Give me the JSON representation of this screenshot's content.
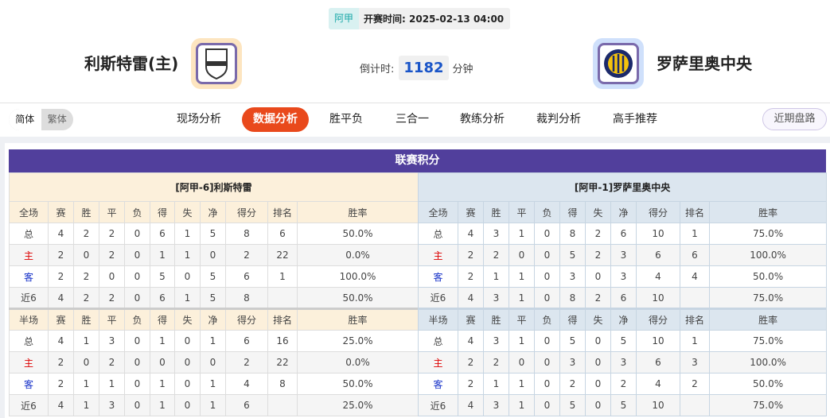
{
  "match": {
    "league": "阿甲",
    "kickoff_label": "开赛时间:",
    "kickoff": "2025-02-13 04:00",
    "home": "利斯特雷(主)",
    "away": "罗萨里奥中央",
    "countdown_label": "倒计时:",
    "countdown": "1182",
    "countdown_unit": "分钟",
    "home_logo_text": "D.RIESTRA",
    "home_logo_color": "#fde5c0",
    "away_logo_color": "#cfe0fb"
  },
  "nav": {
    "lang": [
      "简体",
      "繁体"
    ],
    "tabs": [
      "现场分析",
      "数据分析",
      "胜平负",
      "三合一",
      "教练分析",
      "裁判分析",
      "高手推荐"
    ],
    "active_tab": "数据分析",
    "recent": "近期盘路"
  },
  "standings": {
    "title": "联赛积分",
    "columns": [
      "赛",
      "胜",
      "平",
      "负",
      "得",
      "失",
      "净",
      "得分",
      "排名",
      "胜率"
    ],
    "full_label": "全场",
    "half_label": "半场",
    "teams": [
      {
        "name": "[阿甲-6]利斯特雷",
        "full": [
          [
            "总",
            "4",
            "2",
            "2",
            "0",
            "6",
            "1",
            "5",
            "8",
            "6",
            "50.0%"
          ],
          [
            "主",
            "2",
            "0",
            "2",
            "0",
            "1",
            "1",
            "0",
            "2",
            "22",
            "0.0%"
          ],
          [
            "客",
            "2",
            "2",
            "0",
            "0",
            "5",
            "0",
            "5",
            "6",
            "1",
            "100.0%"
          ],
          [
            "近6",
            "4",
            "2",
            "2",
            "0",
            "6",
            "1",
            "5",
            "8",
            "",
            "50.0%"
          ]
        ],
        "half": [
          [
            "总",
            "4",
            "1",
            "3",
            "0",
            "1",
            "0",
            "1",
            "6",
            "16",
            "25.0%"
          ],
          [
            "主",
            "2",
            "0",
            "2",
            "0",
            "0",
            "0",
            "0",
            "2",
            "22",
            "0.0%"
          ],
          [
            "客",
            "2",
            "1",
            "1",
            "0",
            "1",
            "0",
            "1",
            "4",
            "8",
            "50.0%"
          ],
          [
            "近6",
            "4",
            "1",
            "3",
            "0",
            "1",
            "0",
            "1",
            "6",
            "",
            "25.0%"
          ]
        ]
      },
      {
        "name": "[阿甲-1]罗萨里奥中央",
        "full": [
          [
            "总",
            "4",
            "3",
            "1",
            "0",
            "8",
            "2",
            "6",
            "10",
            "1",
            "75.0%"
          ],
          [
            "主",
            "2",
            "2",
            "0",
            "0",
            "5",
            "2",
            "3",
            "6",
            "6",
            "100.0%"
          ],
          [
            "客",
            "2",
            "1",
            "1",
            "0",
            "3",
            "0",
            "3",
            "4",
            "4",
            "50.0%"
          ],
          [
            "近6",
            "4",
            "3",
            "1",
            "0",
            "8",
            "2",
            "6",
            "10",
            "",
            "75.0%"
          ]
        ],
        "half": [
          [
            "总",
            "4",
            "3",
            "1",
            "0",
            "5",
            "0",
            "5",
            "10",
            "1",
            "75.0%"
          ],
          [
            "主",
            "2",
            "2",
            "0",
            "0",
            "3",
            "0",
            "3",
            "6",
            "3",
            "100.0%"
          ],
          [
            "客",
            "2",
            "1",
            "1",
            "0",
            "2",
            "0",
            "2",
            "4",
            "2",
            "50.0%"
          ],
          [
            "近6",
            "4",
            "3",
            "1",
            "0",
            "5",
            "0",
            "5",
            "10",
            "",
            "75.0%"
          ]
        ]
      }
    ]
  }
}
